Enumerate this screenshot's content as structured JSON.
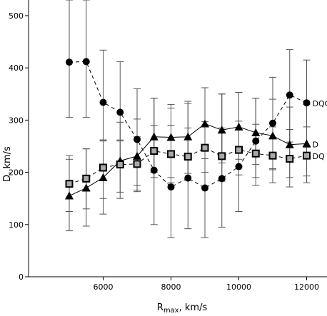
{
  "chart_data": {
    "type": "scatter",
    "title": "",
    "xlabel_main": "R",
    "xlabel_sub": "max",
    "xlabel_rest": ", km/s",
    "ylabel": "D, km/s",
    "xlim": [
      3800,
      12600
    ],
    "ylim": [
      0,
      530
    ],
    "x_ticks": [
      6000,
      8000,
      10000,
      12000
    ],
    "y_ticks": [
      0,
      100,
      200,
      300,
      400,
      500
    ],
    "x_tick_labels": [
      "6000",
      "8000",
      "10000",
      "12000"
    ],
    "y_tick_labels": [
      "0",
      "100",
      "200",
      "300",
      "400",
      "500"
    ],
    "grid": false,
    "x": [
      5000,
      5500,
      6000,
      6500,
      7000,
      7500,
      8000,
      8500,
      9000,
      9500,
      10000,
      10500,
      11000,
      11500,
      12000
    ],
    "series": [
      {
        "name": "DQO",
        "marker": "circle",
        "line": "dashed",
        "values": [
          411,
          412,
          334,
          315,
          263,
          204,
          172,
          189,
          170,
          188,
          211,
          260,
          294,
          348,
          333
        ],
        "err_low": [
          305,
          305,
          262,
          262,
          175,
          100,
          75,
          92,
          75,
          95,
          125,
          175,
          205,
          258,
          248
        ],
        "err_high": [
          530,
          530,
          434,
          412,
          360,
          342,
          323,
          332,
          362,
          350,
          353,
          342,
          382,
          435,
          415
        ]
      },
      {
        "name": "D",
        "marker": "triangle",
        "line": "solid",
        "values": [
          155,
          170,
          190,
          222,
          231,
          268,
          267,
          268,
          293,
          281,
          287,
          276,
          270,
          253,
          255
        ],
        "err_low": [
          88,
          97,
          120,
          150,
          163,
          200,
          190,
          198,
          226,
          218,
          225,
          215,
          207,
          190,
          193
        ],
        "err_high": [
          225,
          245,
          262,
          296,
          302,
          342,
          330,
          336,
          362,
          350,
          353,
          342,
          340,
          325,
          330
        ]
      },
      {
        "name": "DQ",
        "marker": "square",
        "line": "dashed",
        "values": [
          178,
          188,
          209,
          215,
          216,
          241,
          235,
          230,
          247,
          231,
          243,
          236,
          232,
          226,
          232
        ],
        "err_low": [
          125,
          130,
          150,
          162,
          166,
          190,
          180,
          185,
          200,
          183,
          195,
          190,
          180,
          172,
          180
        ],
        "err_high": [
          232,
          245,
          260,
          260,
          268,
          290,
          290,
          285,
          297,
          285,
          298,
          292,
          287,
          282,
          287
        ]
      }
    ]
  }
}
